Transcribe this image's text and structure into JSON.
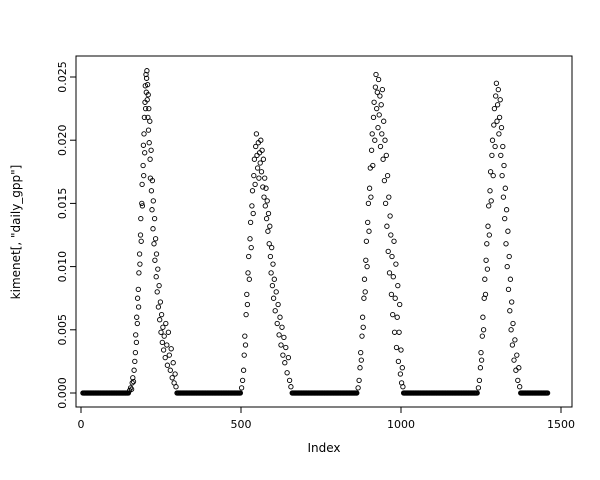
{
  "chart_data": {
    "type": "scatter",
    "title": "",
    "xlabel": "Index",
    "ylabel": "kimenet[, \"daily_gpp\"]",
    "xlim": [
      0,
      1500
    ],
    "ylim": [
      0,
      0.025
    ],
    "x_ticks": [
      0,
      500,
      1000,
      1500
    ],
    "x_tick_labels": [
      "0",
      "500",
      "1000",
      "1500"
    ],
    "y_ticks": [
      0,
      0.005,
      0.01,
      0.015,
      0.02,
      0.025
    ],
    "y_tick_labels": [
      "0.000",
      "0.005",
      "0.010",
      "0.015",
      "0.020",
      "0.025"
    ],
    "grid": false,
    "legend": "none",
    "marker": "open-circle",
    "marker_color": "#000000",
    "background": "#ffffff",
    "baseline_zero_runs": [
      {
        "from": 6,
        "to": 148,
        "step": 2
      },
      {
        "from": 300,
        "to": 498,
        "step": 2
      },
      {
        "from": 660,
        "to": 862,
        "step": 2
      },
      {
        "from": 1008,
        "to": 1238,
        "step": 2
      },
      {
        "from": 1374,
        "to": 1458,
        "step": 2
      }
    ],
    "points": [
      [
        152,
        0.0002
      ],
      [
        155,
        0.0004
      ],
      [
        158,
        0.0003
      ],
      [
        160,
        0.0008
      ],
      [
        162,
        0.0012
      ],
      [
        164,
        0.0009
      ],
      [
        166,
        0.0018
      ],
      [
        168,
        0.0025
      ],
      [
        170,
        0.0032
      ],
      [
        171,
        0.0046
      ],
      [
        173,
        0.004
      ],
      [
        174,
        0.006
      ],
      [
        176,
        0.0055
      ],
      [
        177,
        0.0075
      ],
      [
        179,
        0.0082
      ],
      [
        180,
        0.0068
      ],
      [
        181,
        0.0095
      ],
      [
        183,
        0.011
      ],
      [
        184,
        0.0102
      ],
      [
        186,
        0.0125
      ],
      [
        187,
        0.0138
      ],
      [
        188,
        0.012
      ],
      [
        190,
        0.015
      ],
      [
        191,
        0.0165
      ],
      [
        192,
        0.0148
      ],
      [
        194,
        0.018
      ],
      [
        195,
        0.0196
      ],
      [
        196,
        0.0172
      ],
      [
        197,
        0.0205
      ],
      [
        198,
        0.0218
      ],
      [
        199,
        0.019
      ],
      [
        200,
        0.023
      ],
      [
        201,
        0.0243
      ],
      [
        202,
        0.0225
      ],
      [
        203,
        0.0252
      ],
      [
        204,
        0.0238
      ],
      [
        205,
        0.0249
      ],
      [
        206,
        0.0255
      ],
      [
        207,
        0.0232
      ],
      [
        208,
        0.0244
      ],
      [
        209,
        0.0218
      ],
      [
        210,
        0.0236
      ],
      [
        211,
        0.0208
      ],
      [
        212,
        0.0225
      ],
      [
        213,
        0.0198
      ],
      [
        215,
        0.0215
      ],
      [
        216,
        0.0185
      ],
      [
        217,
        0.017
      ],
      [
        219,
        0.0192
      ],
      [
        220,
        0.016
      ],
      [
        222,
        0.0145
      ],
      [
        223,
        0.0168
      ],
      [
        225,
        0.013
      ],
      [
        226,
        0.0152
      ],
      [
        228,
        0.0118
      ],
      [
        230,
        0.0138
      ],
      [
        231,
        0.0105
      ],
      [
        233,
        0.0122
      ],
      [
        235,
        0.0092
      ],
      [
        236,
        0.011
      ],
      [
        238,
        0.008
      ],
      [
        240,
        0.0098
      ],
      [
        242,
        0.0068
      ],
      [
        244,
        0.0085
      ],
      [
        246,
        0.0058
      ],
      [
        248,
        0.0072
      ],
      [
        250,
        0.0048
      ],
      [
        252,
        0.0062
      ],
      [
        254,
        0.004
      ],
      [
        256,
        0.0052
      ],
      [
        258,
        0.0034
      ],
      [
        260,
        0.0045
      ],
      [
        263,
        0.0028
      ],
      [
        265,
        0.0055
      ],
      [
        268,
        0.0038
      ],
      [
        270,
        0.0022
      ],
      [
        273,
        0.0048
      ],
      [
        276,
        0.003
      ],
      [
        279,
        0.0018
      ],
      [
        282,
        0.0035
      ],
      [
        285,
        0.0012
      ],
      [
        288,
        0.0024
      ],
      [
        291,
        0.0008
      ],
      [
        294,
        0.0015
      ],
      [
        297,
        0.0005
      ],
      [
        502,
        0.0004
      ],
      [
        505,
        0.001
      ],
      [
        508,
        0.0018
      ],
      [
        510,
        0.003
      ],
      [
        512,
        0.0045
      ],
      [
        514,
        0.0038
      ],
      [
        516,
        0.0062
      ],
      [
        518,
        0.0078
      ],
      [
        520,
        0.007
      ],
      [
        522,
        0.0095
      ],
      [
        524,
        0.0108
      ],
      [
        526,
        0.009
      ],
      [
        528,
        0.0122
      ],
      [
        530,
        0.0135
      ],
      [
        532,
        0.0115
      ],
      [
        534,
        0.0148
      ],
      [
        536,
        0.016
      ],
      [
        538,
        0.0142
      ],
      [
        540,
        0.0172
      ],
      [
        542,
        0.0185
      ],
      [
        544,
        0.0165
      ],
      [
        546,
        0.0195
      ],
      [
        548,
        0.0205
      ],
      [
        550,
        0.0188
      ],
      [
        552,
        0.0178
      ],
      [
        554,
        0.0198
      ],
      [
        556,
        0.017
      ],
      [
        558,
        0.019
      ],
      [
        560,
        0.0182
      ],
      [
        562,
        0.02
      ],
      [
        564,
        0.0175
      ],
      [
        566,
        0.0192
      ],
      [
        568,
        0.0163
      ],
      [
        570,
        0.0185
      ],
      [
        572,
        0.0155
      ],
      [
        574,
        0.017
      ],
      [
        576,
        0.0148
      ],
      [
        578,
        0.0162
      ],
      [
        580,
        0.0138
      ],
      [
        582,
        0.0152
      ],
      [
        584,
        0.0128
      ],
      [
        586,
        0.0142
      ],
      [
        588,
        0.0118
      ],
      [
        590,
        0.0132
      ],
      [
        592,
        0.0108
      ],
      [
        594,
        0.0095
      ],
      [
        596,
        0.0115
      ],
      [
        598,
        0.0085
      ],
      [
        600,
        0.0102
      ],
      [
        602,
        0.0075
      ],
      [
        604,
        0.009
      ],
      [
        607,
        0.0065
      ],
      [
        610,
        0.008
      ],
      [
        613,
        0.0055
      ],
      [
        616,
        0.007
      ],
      [
        619,
        0.0046
      ],
      [
        622,
        0.006
      ],
      [
        625,
        0.0038
      ],
      [
        628,
        0.0052
      ],
      [
        631,
        0.003
      ],
      [
        634,
        0.0044
      ],
      [
        637,
        0.0024
      ],
      [
        640,
        0.0036
      ],
      [
        644,
        0.0016
      ],
      [
        648,
        0.0028
      ],
      [
        652,
        0.001
      ],
      [
        656,
        0.0005
      ],
      [
        866,
        0.0004
      ],
      [
        869,
        0.001
      ],
      [
        872,
        0.002
      ],
      [
        874,
        0.0032
      ],
      [
        876,
        0.0026
      ],
      [
        878,
        0.0045
      ],
      [
        880,
        0.006
      ],
      [
        882,
        0.0052
      ],
      [
        884,
        0.0075
      ],
      [
        886,
        0.009
      ],
      [
        888,
        0.008
      ],
      [
        890,
        0.0105
      ],
      [
        892,
        0.012
      ],
      [
        894,
        0.01
      ],
      [
        896,
        0.0135
      ],
      [
        898,
        0.015
      ],
      [
        900,
        0.0128
      ],
      [
        902,
        0.0162
      ],
      [
        904,
        0.0178
      ],
      [
        906,
        0.0155
      ],
      [
        908,
        0.0192
      ],
      [
        910,
        0.0205
      ],
      [
        912,
        0.018
      ],
      [
        914,
        0.0218
      ],
      [
        916,
        0.023
      ],
      [
        918,
        0.02
      ],
      [
        920,
        0.0242
      ],
      [
        922,
        0.0252
      ],
      [
        924,
        0.0225
      ],
      [
        926,
        0.0238
      ],
      [
        928,
        0.021
      ],
      [
        930,
        0.0248
      ],
      [
        932,
        0.022
      ],
      [
        934,
        0.0235
      ],
      [
        936,
        0.0195
      ],
      [
        938,
        0.0228
      ],
      [
        940,
        0.0205
      ],
      [
        942,
        0.024
      ],
      [
        944,
        0.0185
      ],
      [
        946,
        0.0215
      ],
      [
        948,
        0.0168
      ],
      [
        950,
        0.02
      ],
      [
        952,
        0.015
      ],
      [
        954,
        0.0188
      ],
      [
        956,
        0.0132
      ],
      [
        958,
        0.0172
      ],
      [
        960,
        0.0112
      ],
      [
        962,
        0.0155
      ],
      [
        964,
        0.0095
      ],
      [
        966,
        0.014
      ],
      [
        968,
        0.0125
      ],
      [
        970,
        0.0078
      ],
      [
        972,
        0.0108
      ],
      [
        974,
        0.0062
      ],
      [
        976,
        0.0092
      ],
      [
        978,
        0.012
      ],
      [
        980,
        0.0048
      ],
      [
        982,
        0.0075
      ],
      [
        984,
        0.0102
      ],
      [
        986,
        0.0036
      ],
      [
        988,
        0.006
      ],
      [
        990,
        0.0085
      ],
      [
        992,
        0.0025
      ],
      [
        994,
        0.0048
      ],
      [
        996,
        0.007
      ],
      [
        998,
        0.0015
      ],
      [
        1000,
        0.0034
      ],
      [
        1002,
        0.0008
      ],
      [
        1004,
        0.002
      ],
      [
        1006,
        0.0005
      ],
      [
        1242,
        0.0004
      ],
      [
        1245,
        0.001
      ],
      [
        1248,
        0.002
      ],
      [
        1250,
        0.0032
      ],
      [
        1252,
        0.0026
      ],
      [
        1254,
        0.0045
      ],
      [
        1256,
        0.006
      ],
      [
        1258,
        0.005
      ],
      [
        1260,
        0.0075
      ],
      [
        1262,
        0.009
      ],
      [
        1264,
        0.0078
      ],
      [
        1266,
        0.0105
      ],
      [
        1268,
        0.0118
      ],
      [
        1270,
        0.0098
      ],
      [
        1272,
        0.0132
      ],
      [
        1274,
        0.0148
      ],
      [
        1276,
        0.0125
      ],
      [
        1278,
        0.016
      ],
      [
        1280,
        0.0175
      ],
      [
        1282,
        0.0152
      ],
      [
        1284,
        0.0188
      ],
      [
        1286,
        0.02
      ],
      [
        1288,
        0.0172
      ],
      [
        1290,
        0.0212
      ],
      [
        1292,
        0.0225
      ],
      [
        1294,
        0.0195
      ],
      [
        1296,
        0.0235
      ],
      [
        1298,
        0.0245
      ],
      [
        1300,
        0.0215
      ],
      [
        1302,
        0.0228
      ],
      [
        1304,
        0.024
      ],
      [
        1306,
        0.0205
      ],
      [
        1308,
        0.0218
      ],
      [
        1310,
        0.0232
      ],
      [
        1312,
        0.0188
      ],
      [
        1314,
        0.021
      ],
      [
        1316,
        0.0172
      ],
      [
        1318,
        0.0195
      ],
      [
        1320,
        0.0155
      ],
      [
        1322,
        0.018
      ],
      [
        1324,
        0.0138
      ],
      [
        1326,
        0.0162
      ],
      [
        1328,
        0.0118
      ],
      [
        1330,
        0.0145
      ],
      [
        1332,
        0.01
      ],
      [
        1334,
        0.0128
      ],
      [
        1336,
        0.0082
      ],
      [
        1338,
        0.0108
      ],
      [
        1340,
        0.0065
      ],
      [
        1342,
        0.009
      ],
      [
        1344,
        0.005
      ],
      [
        1346,
        0.0072
      ],
      [
        1348,
        0.0038
      ],
      [
        1350,
        0.0055
      ],
      [
        1353,
        0.0026
      ],
      [
        1356,
        0.0042
      ],
      [
        1359,
        0.0018
      ],
      [
        1362,
        0.003
      ],
      [
        1365,
        0.001
      ],
      [
        1368,
        0.002
      ],
      [
        1371,
        0.0005
      ]
    ]
  }
}
